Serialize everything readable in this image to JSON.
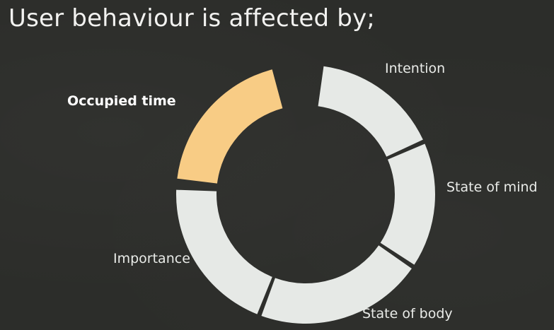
{
  "slide": {
    "title": "User behaviour is affected by;"
  },
  "diagram": {
    "segments": [
      {
        "label": "Intention",
        "start_deg": 8,
        "end_deg": 65,
        "color": "#e6e9e6",
        "highlighted": false
      },
      {
        "label": "State of mind",
        "start_deg": 67,
        "end_deg": 123,
        "color": "#e6e9e6",
        "highlighted": false
      },
      {
        "label": "State of body",
        "start_deg": 125,
        "end_deg": 200,
        "color": "#e6e9e6",
        "highlighted": false
      },
      {
        "label": "Importance",
        "start_deg": 202,
        "end_deg": 272,
        "color": "#e6e9e6",
        "highlighted": false
      },
      {
        "label": "Occupied time",
        "start_deg": 277,
        "end_deg": 345,
        "color": "#f8cc85",
        "highlighted": true
      }
    ],
    "separator_color": "#2c2d2a"
  }
}
